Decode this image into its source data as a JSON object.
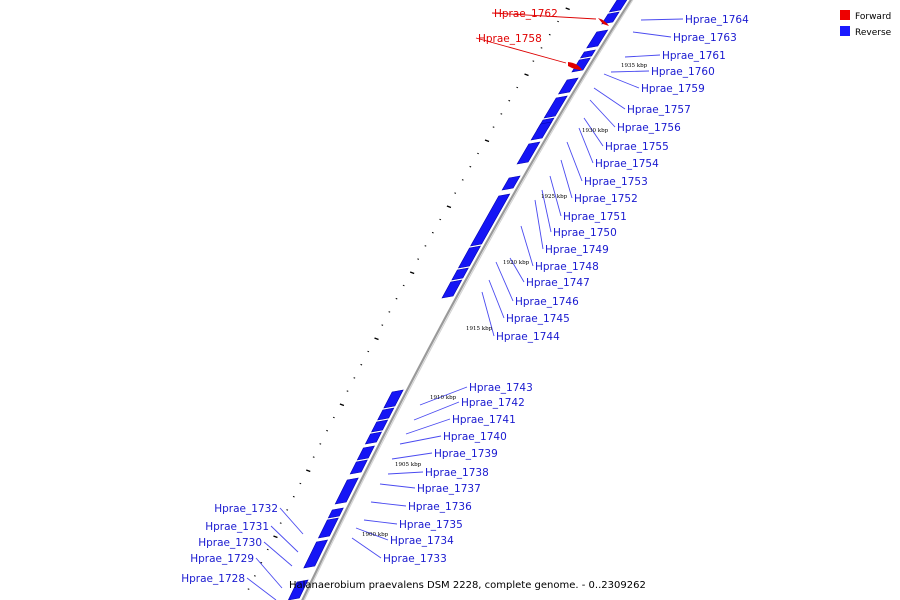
{
  "caption": "Halanaerobium praevalens DSM 2228, complete genome. - 0..2309262",
  "legend": [
    {
      "label": "Forward",
      "color": "#ee0000"
    },
    {
      "label": "Reverse",
      "color": "#1a1aff"
    }
  ],
  "colors": {
    "forward": "#e00000",
    "reverse": "#1515f5",
    "backbone": "#9a9a9a",
    "leader": "#4a4af0",
    "leader_fwd": "#dd0000"
  },
  "ticks": [
    "1935 kbp",
    "1930 kbp",
    "1925 kbp",
    "1920 kbp",
    "1915 kbp",
    "1910 kbp",
    "1905 kbp",
    "1900 kbp"
  ],
  "genes": [
    {
      "name": "Hprae_1762",
      "strand": "forward"
    },
    {
      "name": "Hprae_1758",
      "strand": "forward"
    },
    {
      "name": "Hprae_1764",
      "strand": "reverse"
    },
    {
      "name": "Hprae_1763",
      "strand": "reverse"
    },
    {
      "name": "Hprae_1761",
      "strand": "reverse"
    },
    {
      "name": "Hprae_1760",
      "strand": "reverse"
    },
    {
      "name": "Hprae_1759",
      "strand": "reverse"
    },
    {
      "name": "Hprae_1757",
      "strand": "reverse"
    },
    {
      "name": "Hprae_1756",
      "strand": "reverse"
    },
    {
      "name": "Hprae_1755",
      "strand": "reverse"
    },
    {
      "name": "Hprae_1754",
      "strand": "reverse"
    },
    {
      "name": "Hprae_1753",
      "strand": "reverse"
    },
    {
      "name": "Hprae_1752",
      "strand": "reverse"
    },
    {
      "name": "Hprae_1751",
      "strand": "reverse"
    },
    {
      "name": "Hprae_1750",
      "strand": "reverse"
    },
    {
      "name": "Hprae_1749",
      "strand": "reverse"
    },
    {
      "name": "Hprae_1748",
      "strand": "reverse"
    },
    {
      "name": "Hprae_1747",
      "strand": "reverse"
    },
    {
      "name": "Hprae_1746",
      "strand": "reverse"
    },
    {
      "name": "Hprae_1745",
      "strand": "reverse"
    },
    {
      "name": "Hprae_1744",
      "strand": "reverse"
    },
    {
      "name": "Hprae_1743",
      "strand": "reverse"
    },
    {
      "name": "Hprae_1742",
      "strand": "reverse"
    },
    {
      "name": "Hprae_1741",
      "strand": "reverse"
    },
    {
      "name": "Hprae_1740",
      "strand": "reverse"
    },
    {
      "name": "Hprae_1739",
      "strand": "reverse"
    },
    {
      "name": "Hprae_1738",
      "strand": "reverse"
    },
    {
      "name": "Hprae_1737",
      "strand": "reverse"
    },
    {
      "name": "Hprae_1736",
      "strand": "reverse"
    },
    {
      "name": "Hprae_1735",
      "strand": "reverse"
    },
    {
      "name": "Hprae_1734",
      "strand": "reverse"
    },
    {
      "name": "Hprae_1733",
      "strand": "reverse"
    },
    {
      "name": "Hprae_1732",
      "strand": "reverse"
    },
    {
      "name": "Hprae_1731",
      "strand": "reverse"
    },
    {
      "name": "Hprae_1730",
      "strand": "reverse"
    },
    {
      "name": "Hprae_1729",
      "strand": "reverse"
    },
    {
      "name": "Hprae_1728",
      "strand": "reverse"
    }
  ]
}
